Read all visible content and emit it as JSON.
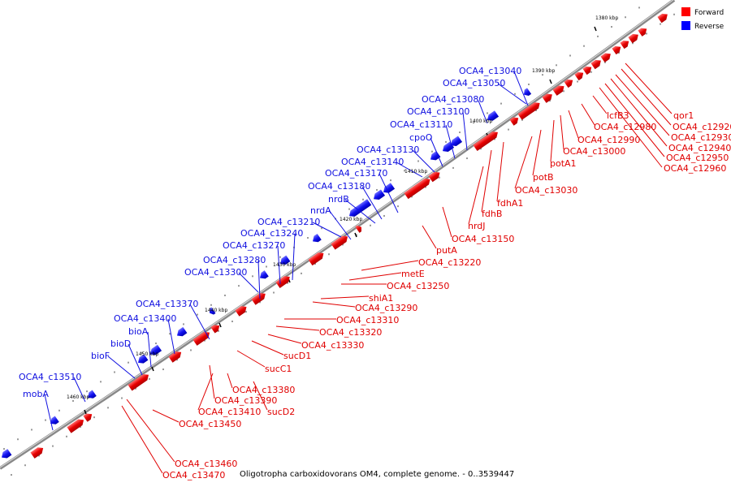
{
  "caption": "Oligotropha carboxidovorans OM4, complete genome. - 0..3539447",
  "legend": [
    {
      "label": "Forward",
      "color": "#ff0000"
    },
    {
      "label": "Reverse",
      "color": "#0000ff"
    }
  ],
  "ticks": [
    "1380 kbp",
    "1390 kbp",
    "1400 kbp",
    "1410 kbp",
    "1420 kbp",
    "1430 kbp",
    "1440 kbp",
    "1450 kbp",
    "1460 kbp"
  ],
  "forward_labels": [
    "qor1",
    "OCA4_c12920",
    "OCA4_c12930",
    "OCA4_c12940",
    "OCA4_c12950",
    "OCA4_c12960",
    "lcfB3",
    "OCA4_c12980",
    "OCA4_c12990",
    "OCA4_c13000",
    "potA1",
    "potB",
    "OCA4_c13030",
    "fdhA1",
    "fdhB",
    "nrdJ",
    "OCA4_c13150",
    "putA",
    "OCA4_c13220",
    "metE",
    "OCA4_c13250",
    "shiA1",
    "OCA4_c13290",
    "OCA4_c13310",
    "OCA4_c13320",
    "OCA4_c13330",
    "sucD1",
    "sucC1",
    "OCA4_c13380",
    "OCA4_c13390",
    "OCA4_c13410",
    "sucD2",
    "OCA4_c13450",
    "OCA4_c13460",
    "OCA4_c13470"
  ],
  "reverse_labels": [
    "OCA4_c13040",
    "OCA4_c13050",
    "OCA4_c13080",
    "OCA4_c13100",
    "OCA4_c13110",
    "cpoO",
    "OCA4_c13130",
    "OCA4_c13140",
    "OCA4_c13170",
    "OCA4_c13180",
    "nrdB",
    "nrdA",
    "OCA4_c13210",
    "OCA4_c13240",
    "OCA4_c13270",
    "OCA4_c13280",
    "OCA4_c13300",
    "OCA4_c13370",
    "OCA4_c13400",
    "bioA",
    "bioD",
    "bioF",
    "OCA4_c13510",
    "mobA"
  ]
}
